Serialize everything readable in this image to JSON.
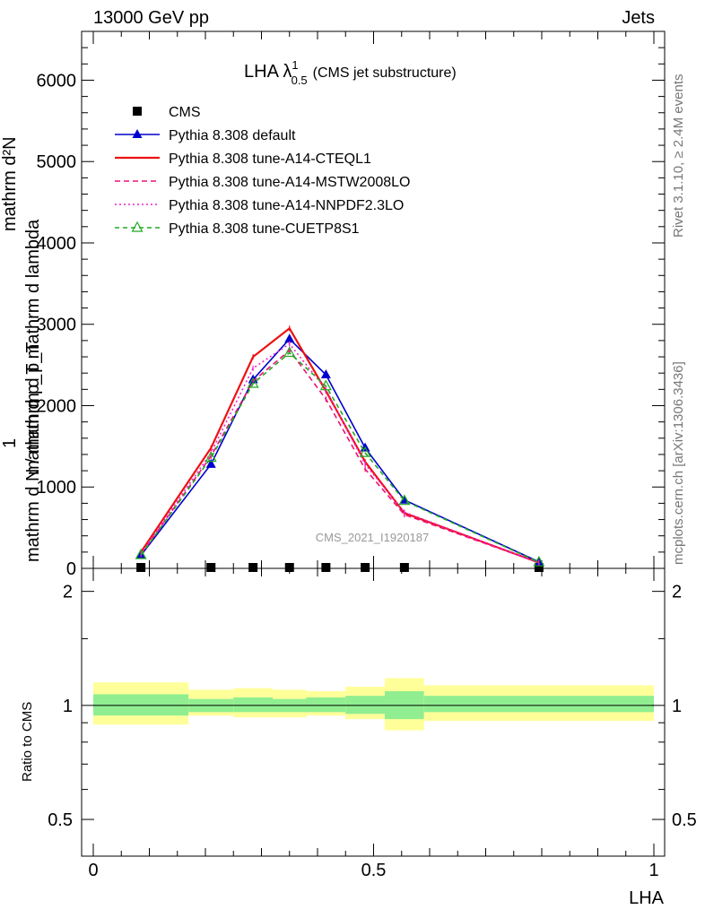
{
  "header": {
    "left": "13000 GeV pp",
    "right": "Jets"
  },
  "side_text": {
    "rivet": "Rivet 3.1.10, ≥ 2.4M events",
    "mcplots": "mcplots.cern.ch [arXiv:1306.3436]"
  },
  "ylabel": {
    "numerator": "mathrm d²N",
    "denominator": "mathrm d p_T mathrm d lambda",
    "prefix_num": "1",
    "prefix_den": "mathrm d N / mathrm d p_T"
  },
  "ratio_ylabel": "Ratio to CMS",
  "xlabel": "LHA",
  "watermark": "CMS_2021_I1920187",
  "chart_data": {
    "type": "line",
    "title_main": "LHA λ",
    "title_sup": "1",
    "title_sub": "0.5",
    "title_note": "(CMS jet substructure)",
    "xlim": [
      0,
      1
    ],
    "ylim": [
      0,
      6600
    ],
    "yticks": [
      0,
      1000,
      2000,
      3000,
      4000,
      5000,
      6000
    ],
    "xticks": [
      0,
      0.5,
      1
    ],
    "x": [
      0.085,
      0.21,
      0.285,
      0.35,
      0.415,
      0.485,
      0.555,
      0.795
    ],
    "bins": [
      [
        0,
        0.17
      ],
      [
        0.17,
        0.25
      ],
      [
        0.25,
        0.32
      ],
      [
        0.32,
        0.38
      ],
      [
        0.38,
        0.45
      ],
      [
        0.45,
        0.52
      ],
      [
        0.52,
        0.59
      ],
      [
        0.59,
        1.0
      ]
    ],
    "legend_position": "top-left",
    "series": [
      {
        "name": "CMS",
        "color": "#000000",
        "dash": "",
        "marker": "square",
        "values": [
          0.8,
          2.8,
          2.3,
          2.0,
          1.6,
          1.2,
          1.0,
          0.05
        ]
      },
      {
        "name": "Pythia 8.308 default",
        "color": "#0000cc",
        "dash": "",
        "marker": "tri-filled",
        "values": [
          160,
          1280,
          2320,
          2820,
          2380,
          1480,
          840,
          80
        ]
      },
      {
        "name": "Pythia 8.308 tune-A14-CTEQL1",
        "color": "#ee1111",
        "dash": "",
        "marker": "none",
        "values": [
          200,
          1480,
          2600,
          2950,
          2180,
          1310,
          680,
          70
        ]
      },
      {
        "name": "Pythia 8.308 tune-A14-MSTW2008LO",
        "color": "#ee1177",
        "dash": "6,4",
        "marker": "none",
        "values": [
          170,
          1380,
          2300,
          2680,
          2080,
          1220,
          660,
          70
        ]
      },
      {
        "name": "Pythia 8.308 tune-A14-NNPDF2.3LO",
        "color": "#ee22cc",
        "dash": "2,3",
        "marker": "none",
        "values": [
          180,
          1420,
          2460,
          2760,
          2200,
          1280,
          690,
          70
        ]
      },
      {
        "name": "Pythia 8.308 tune-CUETP8S1",
        "color": "#22aa22",
        "dash": "5,4",
        "marker": "tri-open",
        "values": [
          165,
          1360,
          2270,
          2650,
          2240,
          1420,
          830,
          75
        ]
      }
    ],
    "ratio": {
      "ylim": [
        0.4,
        2.3
      ],
      "yticks": [
        0.5,
        1,
        2
      ],
      "ytick_labels": [
        "0.5",
        "1",
        "2"
      ],
      "green_band": [
        [
          0.94,
          1.07
        ],
        [
          0.96,
          1.04
        ],
        [
          0.96,
          1.05
        ],
        [
          0.96,
          1.04
        ],
        [
          0.96,
          1.05
        ],
        [
          0.95,
          1.06
        ],
        [
          0.92,
          1.09
        ],
        [
          0.96,
          1.06
        ]
      ],
      "yellow_band": [
        [
          0.89,
          1.15
        ],
        [
          0.94,
          1.1
        ],
        [
          0.93,
          1.11
        ],
        [
          0.93,
          1.1
        ],
        [
          0.94,
          1.09
        ],
        [
          0.92,
          1.12
        ],
        [
          0.86,
          1.18
        ],
        [
          0.91,
          1.13
        ]
      ]
    }
  }
}
